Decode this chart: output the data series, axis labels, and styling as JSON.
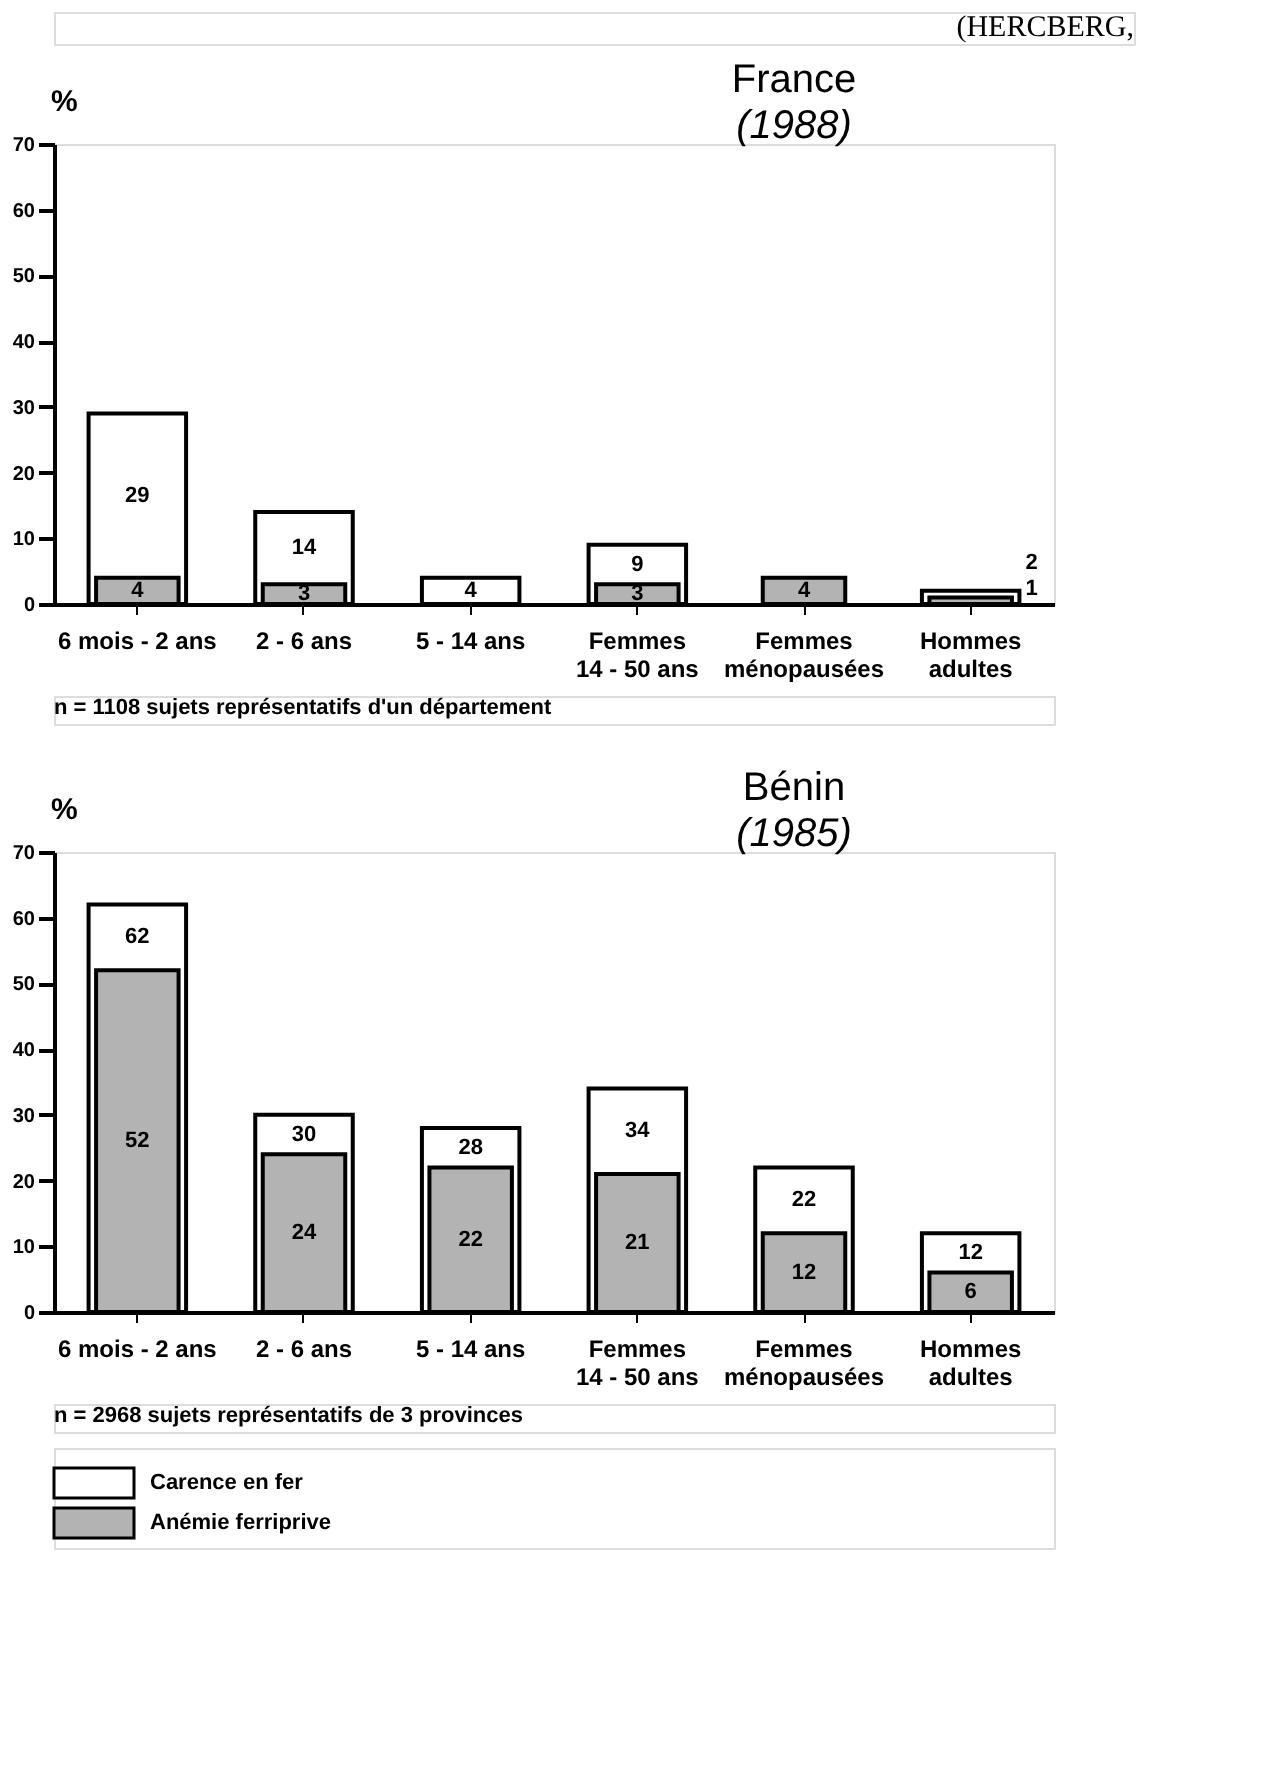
{
  "chart_data": [
    {
      "type": "bar",
      "title": "France",
      "subtitle": "(1988)",
      "ylabel": "%",
      "categories": [
        "6 mois - 2 ans",
        "2 - 6 ans",
        "5 - 14 ans",
        "Femmes 14 - 50 ans",
        "Femmes ménopausées",
        "Hommes adultes"
      ],
      "series": [
        {
          "color": "#ffffff",
          "values": [
            29,
            14,
            4,
            9,
            null,
            2
          ],
          "value_labels": [
            "29",
            "14",
            "4",
            "9",
            null,
            "2"
          ]
        },
        {
          "color": "#b3b3b3",
          "values": [
            4,
            3,
            null,
            3,
            4,
            1
          ],
          "value_labels": [
            "4",
            "3",
            null,
            "3",
            "4",
            "1"
          ]
        }
      ],
      "ylim": [
        0,
        70
      ],
      "yticks": [
        0,
        10,
        20,
        30,
        40,
        50,
        60,
        70
      ],
      "grid": false,
      "legend": false,
      "annotations": [
        "(HERCBERG,",
        "n = 1108 sujets  représentatifs d'un département"
      ]
    },
    {
      "type": "bar",
      "title": "Bénin",
      "subtitle": "(1985)",
      "ylabel": "%",
      "categories": [
        "6 mois - 2 ans",
        "2 - 6 ans",
        "5 - 14 ans",
        "Femmes 14 - 50 ans",
        "Femmes ménopausées",
        "Hommes adultes"
      ],
      "series": [
        {
          "name": "Carence en fer",
          "color": "#ffffff",
          "values": [
            62,
            30,
            28,
            34,
            22,
            12
          ],
          "value_labels": [
            "62",
            "30",
            "28",
            "34",
            "22",
            "12"
          ]
        },
        {
          "name": "Anémie ferriprive",
          "color": "#b3b3b3",
          "values": [
            52,
            24,
            22,
            21,
            12,
            6
          ],
          "value_labels": [
            "52",
            "24",
            "22",
            "21",
            "12",
            "6"
          ]
        }
      ],
      "ylim": [
        0,
        70
      ],
      "yticks": [
        0,
        10,
        20,
        30,
        40,
        50,
        60,
        70
      ],
      "grid": false,
      "legend": "bottom left",
      "annotations": [
        "n = 2968 sujets représentatifs de 3 provinces"
      ]
    }
  ]
}
